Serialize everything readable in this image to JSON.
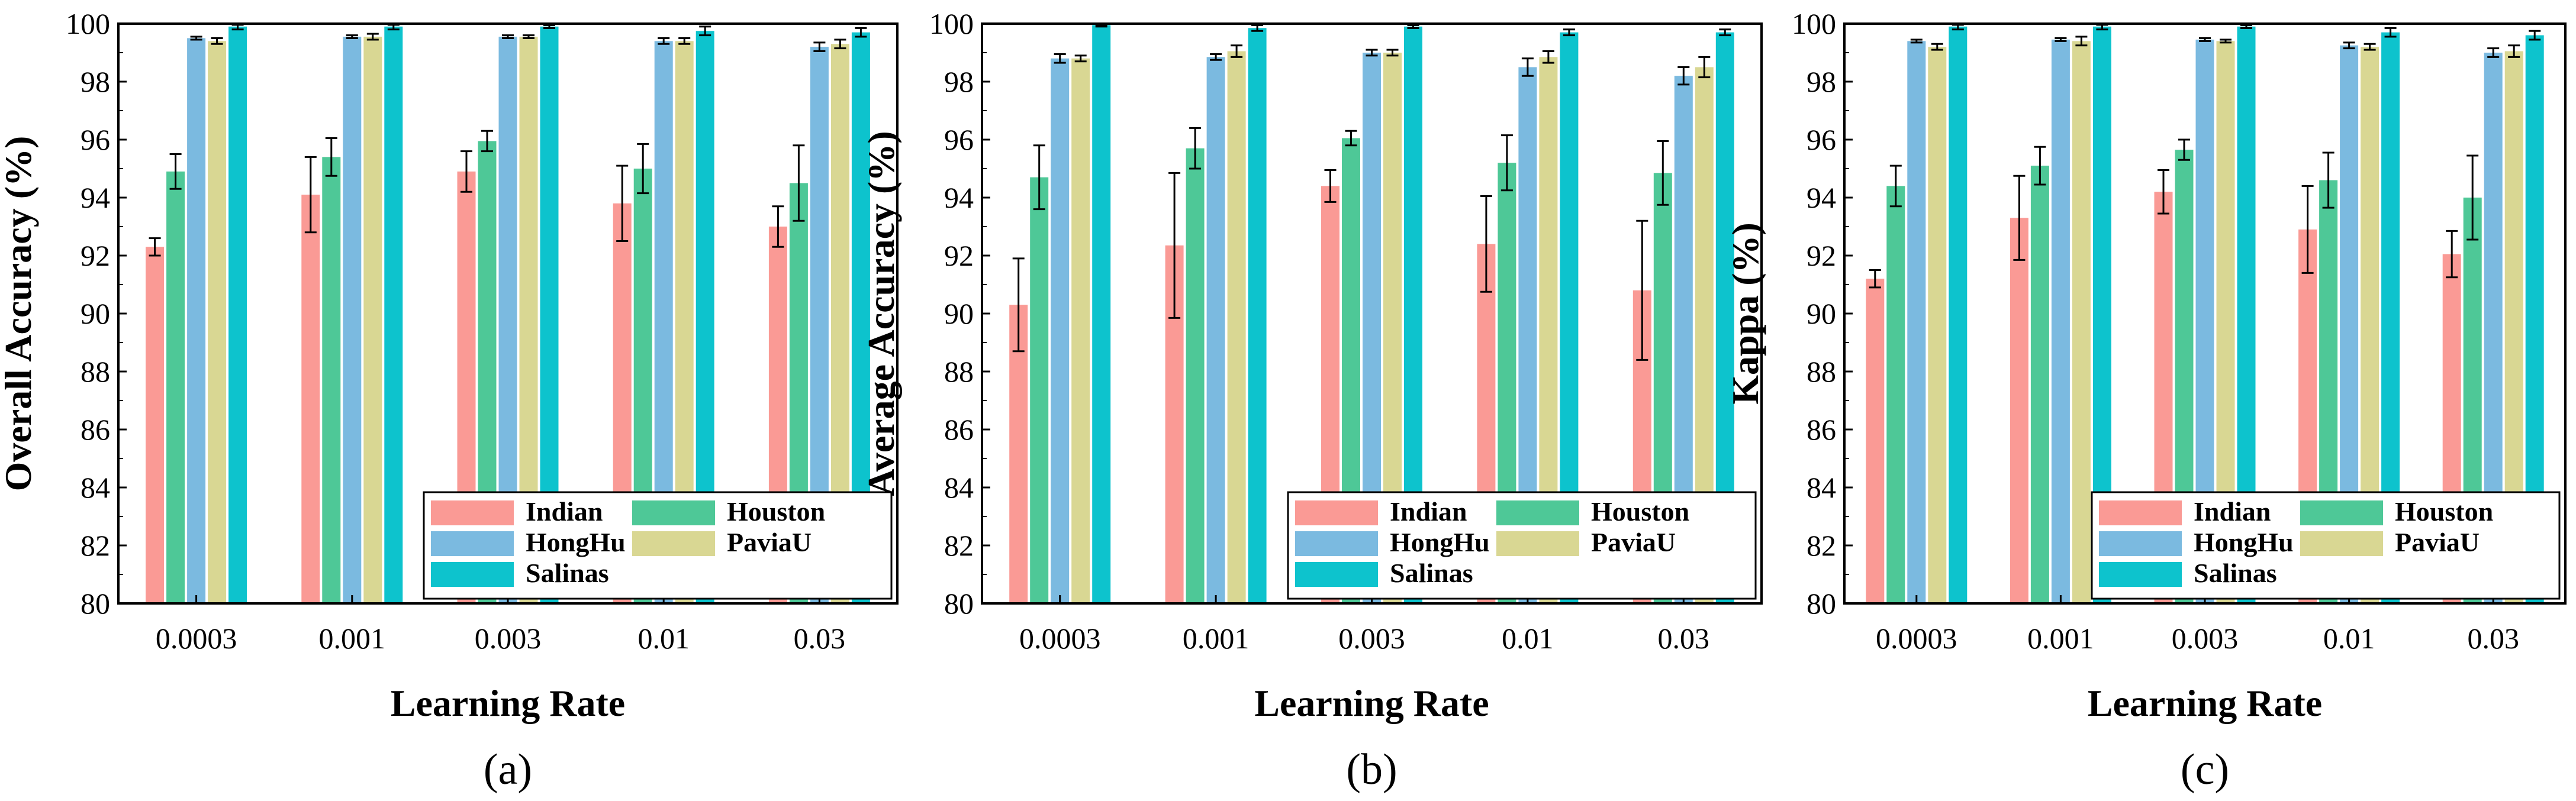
{
  "chart_data": [
    {
      "type": "bar",
      "panel_label": "(a)",
      "title": "",
      "xlabel": "Learning Rate",
      "ylabel": "Overall Accuracy (%)",
      "ylim": [
        80,
        100
      ],
      "yticks": [
        "80",
        "82",
        "84",
        "86",
        "88",
        "90",
        "92",
        "94",
        "96",
        "98",
        "100"
      ],
      "categories": [
        "0.0003",
        "0.001",
        "0.003",
        "0.01",
        "0.03"
      ],
      "legend": {
        "position": "bottom-right",
        "columns": 2
      },
      "series": [
        {
          "name": "Indian",
          "color": "#FA9A95",
          "values": [
            92.3,
            94.1,
            94.9,
            93.8,
            93.0
          ],
          "errors": [
            0.3,
            1.3,
            0.7,
            1.3,
            0.7
          ]
        },
        {
          "name": "Houston",
          "color": "#4EC897",
          "values": [
            94.9,
            95.4,
            95.95,
            95.0,
            94.5
          ],
          "errors": [
            0.6,
            0.65,
            0.35,
            0.85,
            1.3
          ]
        },
        {
          "name": "HongHu",
          "color": "#7BBAE0",
          "values": [
            99.5,
            99.55,
            99.55,
            99.4,
            99.2
          ],
          "errors": [
            0.05,
            0.05,
            0.05,
            0.1,
            0.15
          ]
        },
        {
          "name": "PaviaU",
          "color": "#D9D793",
          "values": [
            99.4,
            99.55,
            99.55,
            99.4,
            99.3
          ],
          "errors": [
            0.1,
            0.1,
            0.05,
            0.1,
            0.15
          ]
        },
        {
          "name": "Salinas",
          "color": "#0DC3CD",
          "values": [
            99.9,
            99.9,
            99.9,
            99.75,
            99.7
          ],
          "errors": [
            0.1,
            0.1,
            0.05,
            0.15,
            0.15
          ]
        }
      ]
    },
    {
      "type": "bar",
      "panel_label": "(b)",
      "title": "",
      "xlabel": "Learning Rate",
      "ylabel": "Average Accuracy (%)",
      "ylim": [
        80,
        100
      ],
      "yticks": [
        "80",
        "82",
        "84",
        "86",
        "88",
        "90",
        "92",
        "94",
        "96",
        "98",
        "100"
      ],
      "categories": [
        "0.0003",
        "0.001",
        "0.003",
        "0.01",
        "0.03"
      ],
      "legend": {
        "position": "bottom-right",
        "columns": 2
      },
      "series": [
        {
          "name": "Indian",
          "color": "#FA9A95",
          "values": [
            90.3,
            92.35,
            94.4,
            92.4,
            90.8
          ],
          "errors": [
            1.6,
            2.5,
            0.55,
            1.65,
            2.4
          ]
        },
        {
          "name": "Houston",
          "color": "#4EC897",
          "values": [
            94.7,
            95.7,
            96.05,
            95.2,
            94.85
          ],
          "errors": [
            1.1,
            0.7,
            0.25,
            0.95,
            1.1
          ]
        },
        {
          "name": "HongHu",
          "color": "#7BBAE0",
          "values": [
            98.8,
            98.85,
            99.0,
            98.5,
            98.2
          ],
          "errors": [
            0.15,
            0.1,
            0.1,
            0.3,
            0.3
          ]
        },
        {
          "name": "PaviaU",
          "color": "#D9D793",
          "values": [
            98.8,
            99.05,
            99.0,
            98.85,
            98.5
          ],
          "errors": [
            0.1,
            0.2,
            0.1,
            0.2,
            0.35
          ]
        },
        {
          "name": "Salinas",
          "color": "#0DC3CD",
          "values": [
            99.95,
            99.85,
            99.9,
            99.7,
            99.7
          ],
          "errors": [
            0.05,
            0.1,
            0.05,
            0.1,
            0.1
          ]
        }
      ]
    },
    {
      "type": "bar",
      "panel_label": "(c)",
      "title": "",
      "xlabel": "Learning Rate",
      "ylabel": "Kappa (%)",
      "ylim": [
        80,
        100
      ],
      "yticks": [
        "80",
        "82",
        "84",
        "86",
        "88",
        "90",
        "92",
        "94",
        "96",
        "98",
        "100"
      ],
      "categories": [
        "0.0003",
        "0.001",
        "0.003",
        "0.01",
        "0.03"
      ],
      "legend": {
        "position": "bottom-right",
        "columns": 2
      },
      "series": [
        {
          "name": "Indian",
          "color": "#FA9A95",
          "values": [
            91.2,
            93.3,
            94.2,
            92.9,
            92.05
          ],
          "errors": [
            0.3,
            1.45,
            0.75,
            1.5,
            0.8
          ]
        },
        {
          "name": "Houston",
          "color": "#4EC897",
          "values": [
            94.4,
            95.1,
            95.65,
            94.6,
            94.0
          ],
          "errors": [
            0.7,
            0.65,
            0.35,
            0.95,
            1.45
          ]
        },
        {
          "name": "HongHu",
          "color": "#7BBAE0",
          "values": [
            99.4,
            99.45,
            99.45,
            99.25,
            99.0
          ],
          "errors": [
            0.05,
            0.05,
            0.05,
            0.1,
            0.15
          ]
        },
        {
          "name": "PaviaU",
          "color": "#D9D793",
          "values": [
            99.2,
            99.4,
            99.4,
            99.2,
            99.05
          ],
          "errors": [
            0.1,
            0.15,
            0.05,
            0.1,
            0.2
          ]
        },
        {
          "name": "Salinas",
          "color": "#0DC3CD",
          "values": [
            99.9,
            99.9,
            99.9,
            99.7,
            99.6
          ],
          "errors": [
            0.1,
            0.1,
            0.05,
            0.15,
            0.15
          ]
        }
      ]
    }
  ]
}
